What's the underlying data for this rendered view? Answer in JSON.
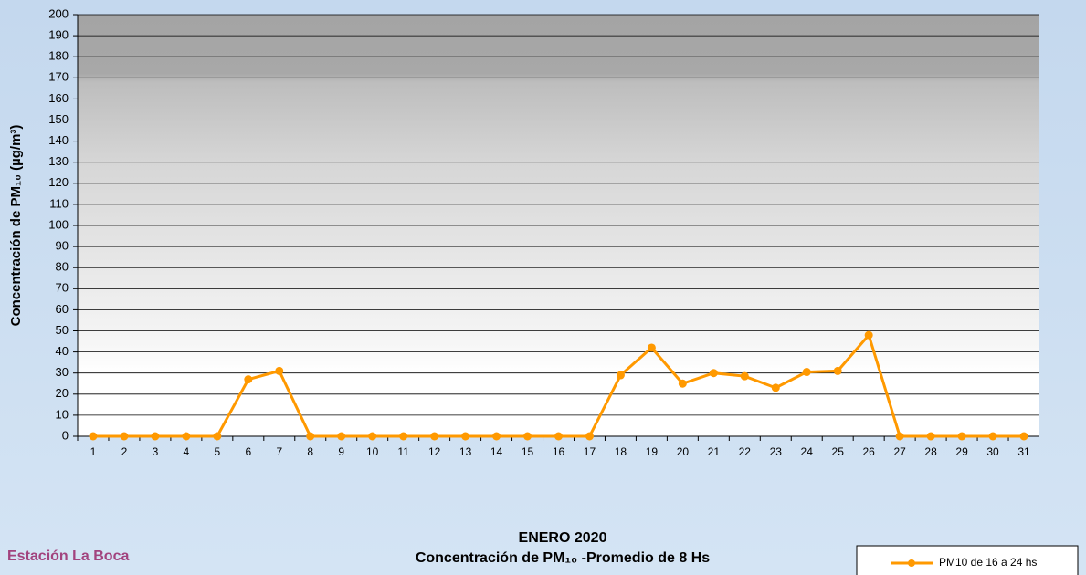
{
  "chart_data": {
    "type": "line",
    "title": "ENERO 2020",
    "subtitle": "Concentración de PM₁₀ -Promedio de 8 Hs",
    "station": "Estación La Boca",
    "y_label": "Concentración de PM₁₀ (µg/m³)",
    "categories": [
      1,
      2,
      3,
      4,
      5,
      6,
      7,
      8,
      9,
      10,
      11,
      12,
      13,
      14,
      15,
      16,
      17,
      18,
      19,
      20,
      21,
      22,
      23,
      24,
      25,
      26,
      27,
      28,
      29,
      30,
      31
    ],
    "series": [
      {
        "name": "PM10 de 16 a 24 hs",
        "color": "#ff9900",
        "values": [
          0,
          0,
          0,
          0,
          0,
          27,
          31,
          0,
          0,
          0,
          0,
          0,
          0,
          0,
          0,
          0,
          0,
          29,
          42,
          25,
          30,
          28.5,
          23,
          30.5,
          31,
          48,
          0,
          0,
          0,
          0,
          0
        ]
      }
    ],
    "ylim": [
      0,
      200
    ],
    "yticks": [
      0,
      10,
      20,
      30,
      40,
      50,
      60,
      70,
      80,
      90,
      100,
      110,
      120,
      130,
      140,
      150,
      160,
      170,
      180,
      190,
      200
    ],
    "grid": true
  }
}
